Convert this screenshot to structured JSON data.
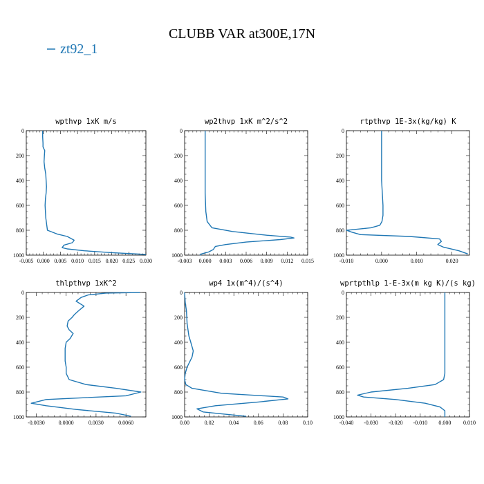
{
  "figure": {
    "title": "CLUBB VAR at300E,17N",
    "legend": {
      "label": "zt92_1",
      "color": "#1f77b4"
    }
  },
  "chart_data": [
    {
      "type": "line",
      "title": "wpthvp  1xK m/s",
      "xlim": [
        -0.005,
        0.03
      ],
      "ylim": [
        1000,
        0
      ],
      "xticks": [
        -0.005,
        0.0,
        0.005,
        0.01,
        0.015,
        0.02,
        0.025,
        0.03
      ],
      "xticklabels": [
        "-0.005",
        "0.000",
        "0.005",
        "0.010",
        "0.015",
        "0.020",
        "0.025",
        "0.030"
      ],
      "yticks": [
        0,
        200,
        400,
        600,
        800,
        1000
      ],
      "yticklabels": [
        "0",
        "200",
        "400",
        "600",
        "800",
        "1000"
      ],
      "series": [
        {
          "name": "zt92_1",
          "color": "#1f77b4",
          "x": [
            -0.0002,
            -0.0002,
            -0.0001,
            -0.0001,
            0.0004,
            0.0003,
            0.0002,
            0.0004,
            0.0007,
            0.0008,
            0.0009,
            0.0008,
            0.0006,
            0.0005,
            0.0007,
            0.0012,
            0.004,
            0.007,
            0.009,
            0.0085,
            0.006,
            0.0055,
            0.007,
            0.012,
            0.02,
            0.027,
            0.03
          ],
          "y": [
            0,
            50,
            100,
            130,
            160,
            200,
            250,
            300,
            350,
            400,
            450,
            500,
            550,
            600,
            700,
            800,
            830,
            850,
            880,
            900,
            920,
            940,
            950,
            965,
            980,
            990,
            995
          ]
        }
      ]
    },
    {
      "type": "line",
      "title": "wp2thvp  1xK m^2/s^2",
      "xlim": [
        -0.003,
        0.015
      ],
      "ylim": [
        1000,
        0
      ],
      "xticks": [
        -0.003,
        0.0,
        0.003,
        0.006,
        0.009,
        0.012,
        0.015
      ],
      "xticklabels": [
        "-0.003",
        "0.000",
        "0.003",
        "0.006",
        "0.009",
        "0.012",
        "0.015"
      ],
      "yticks": [
        0,
        200,
        400,
        600,
        800,
        1000
      ],
      "yticklabels": [
        "0",
        "200",
        "400",
        "600",
        "800",
        "1000"
      ],
      "series": [
        {
          "name": "zt92_1",
          "color": "#1f77b4",
          "x": [
            0.0,
            0.0,
            0.0,
            0.0,
            0.0,
            0.0,
            0.0001,
            0.0003,
            0.001,
            0.004,
            0.009,
            0.0125,
            0.013,
            0.011,
            0.006,
            0.003,
            0.0015,
            0.0012,
            0.0005,
            -0.0005,
            -0.0008
          ],
          "y": [
            0,
            100,
            200,
            300,
            400,
            500,
            650,
            730,
            780,
            810,
            840,
            855,
            862,
            875,
            895,
            915,
            930,
            955,
            975,
            990,
            1000
          ]
        }
      ]
    },
    {
      "type": "line",
      "title": "rtpthvp  1E-3x(kg/kg) K",
      "xlim": [
        -0.01,
        0.025
      ],
      "ylim": [
        1000,
        0
      ],
      "xticks": [
        -0.01,
        0.0,
        0.01,
        0.02
      ],
      "xticklabels": [
        "-0.010",
        "0.000",
        "0.010",
        "0.020"
      ],
      "yticks": [
        0,
        200,
        400,
        600,
        800,
        1000
      ],
      "yticklabels": [
        "0",
        "200",
        "400",
        "600",
        "800",
        "1000"
      ],
      "series": [
        {
          "name": "zt92_1",
          "color": "#1f77b4",
          "x": [
            0.0,
            0.0,
            0.0,
            0.0002,
            0.0004,
            0.0004,
            0.0001,
            -0.0005,
            -0.003,
            -0.008,
            -0.01,
            -0.0085,
            -0.006,
            0.008,
            0.0165,
            0.017,
            0.016,
            0.0175,
            0.022,
            0.0245
          ],
          "y": [
            0,
            200,
            400,
            500,
            600,
            680,
            730,
            760,
            780,
            795,
            800,
            815,
            835,
            850,
            870,
            890,
            915,
            935,
            965,
            990
          ]
        }
      ]
    },
    {
      "type": "line",
      "title": "thlpthvp  1xK^2",
      "xlim": [
        -0.004,
        0.008
      ],
      "ylim": [
        1000,
        0
      ],
      "xticks": [
        -0.003,
        0.0,
        0.003,
        0.006
      ],
      "xticklabels": [
        "-0.0030",
        "0.0000",
        "0.0030",
        "0.0060"
      ],
      "yticks": [
        0,
        200,
        400,
        600,
        800,
        1000
      ],
      "yticklabels": [
        "0",
        "200",
        "400",
        "600",
        "800",
        "1000"
      ],
      "series": [
        {
          "name": "zt92_1",
          "color": "#1f77b4",
          "x": [
            0.0074,
            0.004,
            0.0022,
            0.0015,
            0.001,
            0.0018,
            0.0012,
            0.0008,
            0.0006,
            0.0002,
            0.0001,
            0.0003,
            0.0007,
            0.0004,
            0.0,
            -0.0001,
            -0.0001,
            -0.0001,
            0.0,
            0.0,
            0.0003,
            0.002,
            0.005,
            0.0075,
            0.006,
            -0.002,
            -0.0035,
            -0.002,
            0.001,
            0.005,
            0.0065
          ],
          "y": [
            0,
            5,
            20,
            40,
            70,
            110,
            150,
            180,
            200,
            230,
            270,
            300,
            330,
            370,
            400,
            450,
            500,
            550,
            600,
            650,
            700,
            740,
            770,
            800,
            830,
            860,
            890,
            910,
            940,
            970,
            995
          ]
        }
      ]
    },
    {
      "type": "line",
      "title": "wp4  1x(m^4)/(s^4)",
      "xlim": [
        0.0,
        0.1
      ],
      "ylim": [
        1000,
        0
      ],
      "xticks": [
        0.0,
        0.02,
        0.04,
        0.06,
        0.08,
        0.1
      ],
      "xticklabels": [
        "0.00",
        "0.02",
        "0.04",
        "0.06",
        "0.08",
        "0.10"
      ],
      "yticks": [
        0,
        200,
        400,
        600,
        800,
        1000
      ],
      "yticklabels": [
        "0",
        "200",
        "400",
        "600",
        "800",
        "1000"
      ],
      "series": [
        {
          "name": "zt92_1",
          "color": "#1f77b4",
          "x": [
            0.0,
            0.0005,
            0.0015,
            0.002,
            0.0035,
            0.005,
            0.007,
            0.006,
            0.004,
            0.002,
            0.0005,
            0.0,
            0.001,
            0.006,
            0.03,
            0.08,
            0.084,
            0.06,
            0.025,
            0.01,
            0.015,
            0.04,
            0.05
          ],
          "y": [
            0,
            80,
            150,
            250,
            350,
            400,
            470,
            520,
            560,
            600,
            650,
            700,
            740,
            770,
            810,
            840,
            855,
            880,
            910,
            935,
            960,
            985,
            995
          ]
        }
      ]
    },
    {
      "type": "line",
      "title": "wprtpthlp  1-E-3x(m kg K)/(s kg)",
      "xlim": [
        -0.04,
        0.01
      ],
      "ylim": [
        1000,
        0
      ],
      "xticks": [
        -0.04,
        -0.03,
        -0.02,
        -0.01,
        0.0,
        0.01
      ],
      "xticklabels": [
        "-0.040",
        "-0.030",
        "-0.020",
        "-0.010",
        "0.000",
        "0.010"
      ],
      "yticks": [
        0,
        200,
        400,
        600,
        800,
        1000
      ],
      "yticklabels": [
        "0",
        "200",
        "400",
        "600",
        "800",
        "1000"
      ],
      "series": [
        {
          "name": "zt92_1",
          "color": "#1f77b4",
          "x": [
            0.0,
            0.0,
            0.0,
            0.0,
            -0.0005,
            -0.004,
            -0.015,
            -0.03,
            -0.0355,
            -0.033,
            -0.02,
            -0.008,
            -0.002,
            0.0,
            0.0
          ],
          "y": [
            0,
            200,
            400,
            650,
            700,
            740,
            770,
            800,
            825,
            840,
            860,
            890,
            920,
            950,
            1000
          ]
        }
      ]
    }
  ]
}
